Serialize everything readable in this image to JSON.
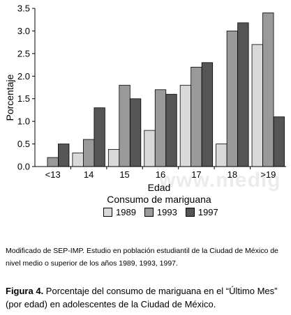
{
  "chart_data": {
    "type": "bar",
    "categories": [
      "<13",
      "14",
      "15",
      "16",
      "17",
      "18",
      ">19"
    ],
    "series": [
      {
        "name": "1989",
        "color": "#d9d9d9",
        "values": [
          0.0,
          0.3,
          0.38,
          0.8,
          1.8,
          0.5,
          2.7
        ]
      },
      {
        "name": "1993",
        "color": "#9a9a9a",
        "values": [
          0.2,
          0.6,
          1.8,
          1.7,
          2.2,
          3.0,
          3.4
        ]
      },
      {
        "name": "1997",
        "color": "#555555",
        "values": [
          0.5,
          1.3,
          1.5,
          1.6,
          2.3,
          3.18,
          1.1
        ]
      }
    ],
    "xlabel": "Edad",
    "ylabel": "Porcentaje",
    "subtitle": "Consumo de mariguana",
    "ylim": [
      0,
      3.5
    ],
    "yticks": [
      "0.0",
      "0.5",
      "1.0",
      "1.5",
      "2.0",
      "2.5",
      "3.0",
      "3.5"
    ],
    "grid": false,
    "legend_position": "bottom"
  },
  "watermark": "www.medig",
  "note": "Modificado de SEP-IMP. Estudio en población estudiantil de la Ciudad de México de nivel medio o superior de los años 1989, 1993, 1997.",
  "caption": {
    "label": "Figura 4.",
    "text": " Porcentaje del consumo de mariguana en el “Último Mes” (por edad) en adolescentes de la Ciudad de México."
  }
}
